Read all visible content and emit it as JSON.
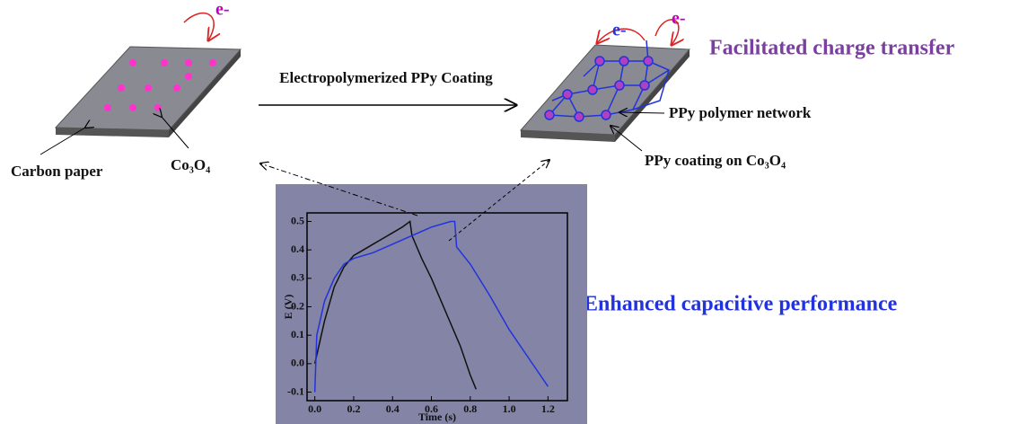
{
  "labels": {
    "e_left": "e-",
    "arrow_label": "Electropolymerized PPy Coating",
    "e_right_1": "e-",
    "e_right_2": "e-",
    "facilitated": "Facilitated charge transfer",
    "network": "PPy polymer network",
    "coating": "PPy coating on Co₃O₄",
    "carbon_paper": "Carbon paper",
    "co3o4": "Co₃O₄",
    "enhanced": "Enhanced capacitive performance"
  },
  "chart_data": {
    "type": "line",
    "xlabel": "Time (s)",
    "ylabel": "E (V)",
    "xlim": [
      -0.04,
      1.3
    ],
    "ylim": [
      -0.13,
      0.53
    ],
    "xticks": [
      {
        "value": 0,
        "label": "0.0"
      },
      0.2,
      0.4,
      0.6,
      0.8,
      {
        "value": 1,
        "label": "1.0"
      },
      1.2
    ],
    "yticks": [
      -0.1,
      {
        "value": 0,
        "label": "0.0"
      },
      0.1,
      0.2,
      0.3,
      0.4,
      0.5
    ],
    "series": [
      {
        "color": "#111111",
        "x": [
          0,
          0.05,
          0.1,
          0.15,
          0.2,
          0.25,
          0.3,
          0.35,
          0.4,
          0.45,
          0.49,
          0.5,
          0.55,
          0.6,
          0.65,
          0.7,
          0.75,
          0.8,
          0.83
        ],
        "values": [
          0.0,
          0.15,
          0.27,
          0.34,
          0.38,
          0.4,
          0.42,
          0.44,
          0.46,
          0.48,
          0.5,
          0.45,
          0.37,
          0.3,
          0.22,
          0.14,
          0.06,
          -0.04,
          -0.09
        ]
      },
      {
        "color": "#2233dd",
        "x": [
          0,
          0.01,
          0.05,
          0.1,
          0.15,
          0.2,
          0.3,
          0.4,
          0.5,
          0.6,
          0.7,
          0.72,
          0.73,
          0.8,
          0.9,
          1.0,
          1.1,
          1.2
        ],
        "values": [
          -0.1,
          0.1,
          0.22,
          0.3,
          0.35,
          0.37,
          0.39,
          0.42,
          0.45,
          0.48,
          0.5,
          0.5,
          0.41,
          0.35,
          0.24,
          0.12,
          0.02,
          -0.08
        ]
      }
    ]
  }
}
